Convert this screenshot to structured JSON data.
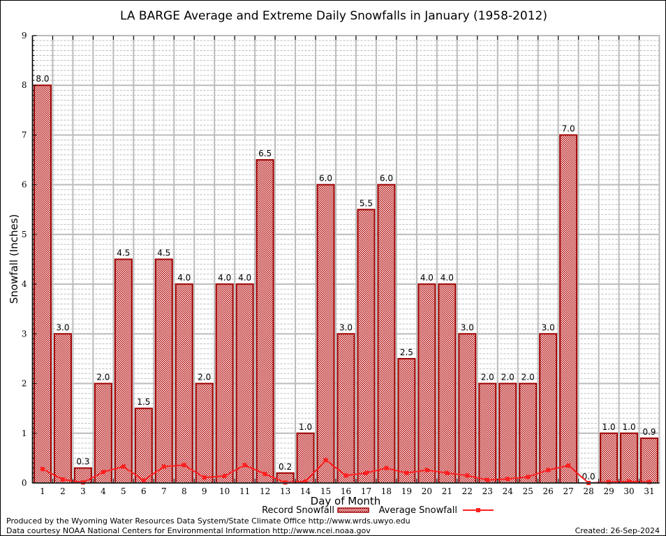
{
  "chart_data": {
    "type": "bar",
    "title": "LA BARGE Average and Extreme Daily Snowfalls in January (1958-2012)",
    "xlabel": "Day of Month",
    "ylabel": "Snowfall (Inches)",
    "ylim": [
      0,
      9
    ],
    "yticks": [
      "0",
      "1",
      "2",
      "3",
      "4",
      "5",
      "6",
      "7",
      "8",
      "9"
    ],
    "categories": [
      "1",
      "2",
      "3",
      "4",
      "5",
      "6",
      "7",
      "8",
      "9",
      "10",
      "11",
      "12",
      "13",
      "14",
      "15",
      "16",
      "17",
      "18",
      "19",
      "20",
      "21",
      "22",
      "23",
      "24",
      "25",
      "26",
      "27",
      "28",
      "29",
      "30",
      "31"
    ],
    "series": [
      {
        "name": "Record Snowfall",
        "type": "bar",
        "color": "#a00000",
        "values": [
          8.0,
          3.0,
          0.3,
          2.0,
          4.5,
          1.5,
          4.5,
          4.0,
          2.0,
          4.0,
          4.0,
          6.5,
          0.2,
          1.0,
          6.0,
          3.0,
          5.5,
          6.0,
          2.5,
          4.0,
          4.0,
          3.0,
          2.0,
          2.0,
          2.0,
          3.0,
          7.0,
          0.0,
          1.0,
          1.0,
          0.9
        ],
        "labels": [
          "8.0",
          "3.0",
          "0.3",
          "2.0",
          "4.5",
          "1.5",
          "4.5",
          "4.0",
          "2.0",
          "4.0",
          "4.0",
          "6.5",
          "0.2",
          "1.0",
          "6.0",
          "3.0",
          "5.5",
          "6.0",
          "2.5",
          "4.0",
          "4.0",
          "3.0",
          "2.0",
          "2.0",
          "2.0",
          "3.0",
          "7.0",
          "0.0",
          "1.0",
          "1.0",
          "0.9"
        ]
      },
      {
        "name": "Average Snowfall",
        "type": "line",
        "color": "#ff2020",
        "values": [
          0.28,
          0.07,
          0.01,
          0.22,
          0.33,
          0.05,
          0.33,
          0.36,
          0.11,
          0.14,
          0.36,
          0.18,
          0.01,
          0.03,
          0.46,
          0.15,
          0.2,
          0.3,
          0.2,
          0.26,
          0.2,
          0.15,
          0.06,
          0.08,
          0.12,
          0.26,
          0.35,
          0.0,
          0.02,
          0.03,
          0.02
        ]
      }
    ],
    "grid": true,
    "legend": "bottom-center"
  },
  "footer": {
    "line1": "Produced by the Wyoming Water Resources Data System/State Climate Office http://www.wrds.uwyo.edu",
    "line2": "Data courtesy NOAA National Centers for Environmental Information http://www.ncei.noaa.gov",
    "created": "Created:  26-Sep-2024"
  }
}
